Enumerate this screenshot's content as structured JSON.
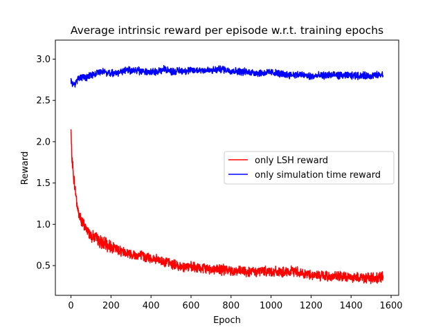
{
  "chart_data": {
    "type": "line",
    "title": "Average intrinsic reward per episode w.r.t. training epochs",
    "xlabel": "Epoch",
    "ylabel": "Reward",
    "xlim": [
      -78,
      1638
    ],
    "ylim": [
      0.14,
      3.23
    ],
    "xticks": [
      0,
      200,
      400,
      600,
      800,
      1000,
      1200,
      1400,
      1600
    ],
    "yticks": [
      0.5,
      1.0,
      1.5,
      2.0,
      2.5,
      3.0
    ],
    "xtick_labels": [
      "0",
      "200",
      "400",
      "600",
      "800",
      "1000",
      "1200",
      "1400",
      "1600"
    ],
    "ytick_labels": [
      "0.5",
      "1.0",
      "1.5",
      "2.0",
      "2.5",
      "3.0"
    ],
    "grid": false,
    "legend_position": "center-right",
    "series": [
      {
        "name": "only LSH reward",
        "color": "#ff0000",
        "x": [
          0,
          2,
          5,
          8,
          12,
          16,
          20,
          25,
          30,
          35,
          40,
          50,
          60,
          70,
          80,
          90,
          100,
          120,
          140,
          160,
          180,
          200,
          230,
          260,
          290,
          320,
          350,
          380,
          410,
          440,
          470,
          500,
          530,
          560,
          600,
          640,
          680,
          720,
          760,
          800,
          840,
          880,
          920,
          960,
          1000,
          1040,
          1080,
          1120,
          1160,
          1200,
          1240,
          1280,
          1320,
          1360,
          1400,
          1440,
          1480,
          1520,
          1560
        ],
        "y": [
          2.15,
          1.95,
          1.8,
          1.72,
          1.6,
          1.52,
          1.45,
          1.35,
          1.25,
          1.17,
          1.12,
          1.06,
          1.0,
          0.97,
          0.93,
          0.9,
          0.87,
          0.84,
          0.8,
          0.77,
          0.75,
          0.73,
          0.7,
          0.67,
          0.65,
          0.63,
          0.62,
          0.6,
          0.58,
          0.56,
          0.55,
          0.52,
          0.5,
          0.49,
          0.48,
          0.47,
          0.46,
          0.46,
          0.45,
          0.44,
          0.43,
          0.43,
          0.42,
          0.44,
          0.43,
          0.42,
          0.41,
          0.44,
          0.4,
          0.39,
          0.38,
          0.37,
          0.37,
          0.36,
          0.36,
          0.36,
          0.35,
          0.35,
          0.36
        ]
      },
      {
        "name": "only simulation time reward",
        "color": "#0000ff",
        "x": [
          0,
          10,
          20,
          30,
          40,
          60,
          80,
          100,
          130,
          160,
          200,
          240,
          280,
          320,
          360,
          400,
          440,
          470,
          500,
          550,
          600,
          650,
          700,
          750,
          800,
          850,
          900,
          950,
          1000,
          1050,
          1100,
          1150,
          1200,
          1250,
          1300,
          1350,
          1400,
          1450,
          1500,
          1560
        ],
        "y": [
          2.73,
          2.71,
          2.7,
          2.74,
          2.77,
          2.78,
          2.78,
          2.8,
          2.84,
          2.86,
          2.82,
          2.84,
          2.87,
          2.86,
          2.85,
          2.84,
          2.86,
          2.88,
          2.85,
          2.86,
          2.86,
          2.87,
          2.86,
          2.88,
          2.86,
          2.85,
          2.84,
          2.83,
          2.84,
          2.82,
          2.81,
          2.81,
          2.79,
          2.8,
          2.81,
          2.8,
          2.8,
          2.8,
          2.8,
          2.81
        ]
      }
    ]
  }
}
